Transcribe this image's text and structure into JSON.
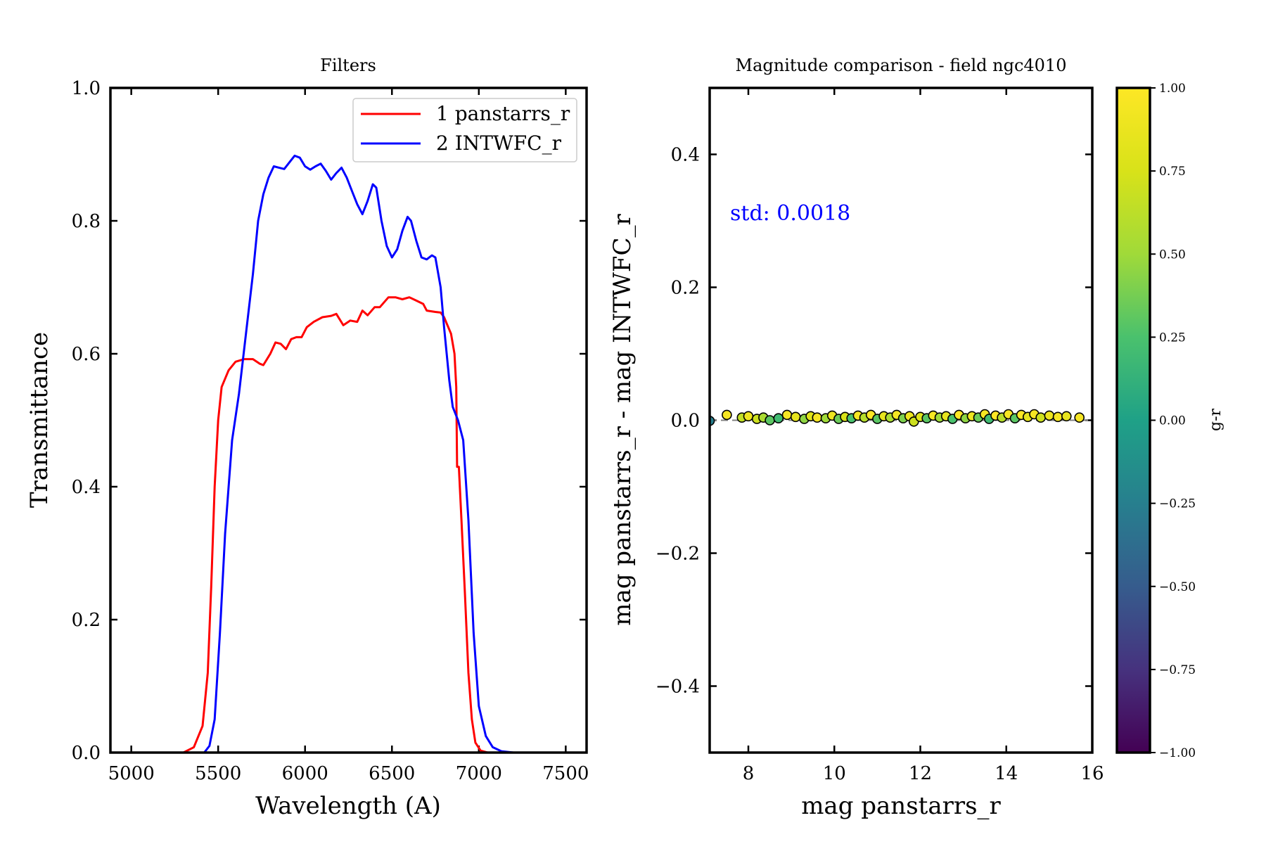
{
  "chart_data": [
    {
      "type": "line",
      "title": "Filters",
      "xlabel": "Wavelength (A)",
      "ylabel": "Transmittance",
      "xlim": [
        4880,
        7620
      ],
      "ylim": [
        0,
        1
      ],
      "xticks": [
        5000,
        5500,
        6000,
        6500,
        7000,
        7500
      ],
      "yticks": [
        0.0,
        0.2,
        0.4,
        0.6,
        0.8,
        1.0
      ],
      "xtick_labels": [
        "5000",
        "5500",
        "6000",
        "6500",
        "7000",
        "7500"
      ],
      "ytick_labels": [
        "0.0",
        "0.2",
        "0.4",
        "0.6",
        "0.8",
        "1.0"
      ],
      "legend": "top-right",
      "series": [
        {
          "name": "1 panstarrs_r",
          "color": "#ff0000",
          "points": [
            [
              5300,
              0
            ],
            [
              5360,
              0.008
            ],
            [
              5410,
              0.04
            ],
            [
              5440,
              0.12
            ],
            [
              5460,
              0.25
            ],
            [
              5480,
              0.4
            ],
            [
              5500,
              0.5
            ],
            [
              5520,
              0.55
            ],
            [
              5560,
              0.575
            ],
            [
              5600,
              0.588
            ],
            [
              5650,
              0.592
            ],
            [
              5700,
              0.592
            ],
            [
              5740,
              0.585
            ],
            [
              5760,
              0.583
            ],
            [
              5800,
              0.6
            ],
            [
              5830,
              0.617
            ],
            [
              5860,
              0.615
            ],
            [
              5890,
              0.607
            ],
            [
              5920,
              0.622
            ],
            [
              5950,
              0.625
            ],
            [
              5980,
              0.625
            ],
            [
              6010,
              0.64
            ],
            [
              6050,
              0.648
            ],
            [
              6100,
              0.655
            ],
            [
              6150,
              0.657
            ],
            [
              6180,
              0.66
            ],
            [
              6220,
              0.643
            ],
            [
              6260,
              0.65
            ],
            [
              6300,
              0.648
            ],
            [
              6330,
              0.665
            ],
            [
              6360,
              0.658
            ],
            [
              6400,
              0.67
            ],
            [
              6430,
              0.67
            ],
            [
              6480,
              0.685
            ],
            [
              6520,
              0.685
            ],
            [
              6560,
              0.682
            ],
            [
              6600,
              0.685
            ],
            [
              6640,
              0.68
            ],
            [
              6680,
              0.675
            ],
            [
              6700,
              0.665
            ],
            [
              6750,
              0.663
            ],
            [
              6780,
              0.662
            ],
            [
              6800,
              0.655
            ],
            [
              6840,
              0.63
            ],
            [
              6860,
              0.6
            ],
            [
              6870,
              0.55
            ],
            [
              6875,
              0.43
            ],
            [
              6885,
              0.43
            ],
            [
              6900,
              0.35
            ],
            [
              6920,
              0.24
            ],
            [
              6940,
              0.12
            ],
            [
              6960,
              0.05
            ],
            [
              6980,
              0.015
            ],
            [
              7010,
              0.003
            ],
            [
              7050,
              0
            ],
            [
              7600,
              0
            ]
          ]
        },
        {
          "name": "2 INTWFC_r",
          "color": "#0000ff",
          "points": [
            [
              5420,
              0
            ],
            [
              5450,
              0.01
            ],
            [
              5480,
              0.05
            ],
            [
              5510,
              0.18
            ],
            [
              5540,
              0.33
            ],
            [
              5580,
              0.47
            ],
            [
              5620,
              0.54
            ],
            [
              5660,
              0.63
            ],
            [
              5700,
              0.72
            ],
            [
              5730,
              0.8
            ],
            [
              5760,
              0.84
            ],
            [
              5790,
              0.865
            ],
            [
              5820,
              0.882
            ],
            [
              5850,
              0.88
            ],
            [
              5880,
              0.878
            ],
            [
              5910,
              0.888
            ],
            [
              5940,
              0.898
            ],
            [
              5970,
              0.895
            ],
            [
              6000,
              0.882
            ],
            [
              6030,
              0.877
            ],
            [
              6060,
              0.882
            ],
            [
              6090,
              0.886
            ],
            [
              6120,
              0.875
            ],
            [
              6150,
              0.862
            ],
            [
              6180,
              0.872
            ],
            [
              6210,
              0.88
            ],
            [
              6240,
              0.865
            ],
            [
              6270,
              0.845
            ],
            [
              6300,
              0.825
            ],
            [
              6330,
              0.81
            ],
            [
              6360,
              0.83
            ],
            [
              6390,
              0.855
            ],
            [
              6410,
              0.85
            ],
            [
              6440,
              0.8
            ],
            [
              6470,
              0.762
            ],
            [
              6500,
              0.745
            ],
            [
              6530,
              0.757
            ],
            [
              6560,
              0.785
            ],
            [
              6590,
              0.806
            ],
            [
              6610,
              0.8
            ],
            [
              6640,
              0.77
            ],
            [
              6670,
              0.745
            ],
            [
              6700,
              0.742
            ],
            [
              6730,
              0.748
            ],
            [
              6750,
              0.745
            ],
            [
              6780,
              0.7
            ],
            [
              6800,
              0.64
            ],
            [
              6830,
              0.56
            ],
            [
              6850,
              0.52
            ],
            [
              6880,
              0.5
            ],
            [
              6910,
              0.47
            ],
            [
              6940,
              0.35
            ],
            [
              6970,
              0.18
            ],
            [
              7000,
              0.07
            ],
            [
              7040,
              0.025
            ],
            [
              7080,
              0.008
            ],
            [
              7130,
              0.002
            ],
            [
              7200,
              0
            ],
            [
              7600,
              0
            ]
          ]
        }
      ]
    },
    {
      "type": "scatter",
      "title": "Magnitude comparison - field ngc4010",
      "xlabel": "mag panstarrs_r",
      "ylabel": "mag panstarrs_r - mag INTWFC_r",
      "xlim": [
        7.1,
        16.0
      ],
      "ylim": [
        -0.5,
        0.5
      ],
      "xticks": [
        8,
        10,
        12,
        14,
        16
      ],
      "yticks": [
        -0.4,
        -0.2,
        0.0,
        0.2,
        0.4
      ],
      "xtick_labels": [
        "8",
        "10",
        "12",
        "14",
        "16"
      ],
      "ytick_labels": [
        "−0.4",
        "−0.2",
        "0.0",
        "0.2",
        "0.4"
      ],
      "annotation": "std: 0.0018",
      "annotation_color": "#0000ff",
      "reference_line": 0.0,
      "colorbar": {
        "label": "g-r",
        "colormap": "viridis",
        "range": [
          -1.0,
          1.0
        ],
        "ticks": [
          -1.0,
          -0.75,
          -0.5,
          -0.25,
          0.0,
          0.25,
          0.5,
          0.75,
          1.0
        ],
        "tick_labels": [
          "−1.00",
          "−0.75",
          "−0.50",
          "−0.25",
          "0.00",
          "0.25",
          "0.50",
          "0.75",
          "1.00"
        ]
      },
      "points": [
        {
          "x": 7.1,
          "y": -0.001,
          "c": -0.25
        },
        {
          "x": 7.5,
          "y": 0.008,
          "c": 0.95
        },
        {
          "x": 7.85,
          "y": 0.004,
          "c": 0.65
        },
        {
          "x": 8.0,
          "y": 0.006,
          "c": 0.9
        },
        {
          "x": 8.2,
          "y": 0.002,
          "c": 0.7
        },
        {
          "x": 8.35,
          "y": 0.004,
          "c": 0.55
        },
        {
          "x": 8.5,
          "y": 0.0,
          "c": 0.3
        },
        {
          "x": 8.7,
          "y": 0.003,
          "c": 0.2
        },
        {
          "x": 8.9,
          "y": 0.008,
          "c": 0.95
        },
        {
          "x": 9.1,
          "y": 0.005,
          "c": 0.85
        },
        {
          "x": 9.3,
          "y": 0.002,
          "c": 0.45
        },
        {
          "x": 9.45,
          "y": 0.006,
          "c": 0.8
        },
        {
          "x": 9.6,
          "y": 0.004,
          "c": 0.95
        },
        {
          "x": 9.8,
          "y": 0.003,
          "c": 0.5
        },
        {
          "x": 9.95,
          "y": 0.007,
          "c": 0.9
        },
        {
          "x": 10.1,
          "y": 0.002,
          "c": 0.35
        },
        {
          "x": 10.25,
          "y": 0.005,
          "c": 0.75
        },
        {
          "x": 10.4,
          "y": 0.003,
          "c": 0.25
        },
        {
          "x": 10.55,
          "y": 0.007,
          "c": 0.95
        },
        {
          "x": 10.7,
          "y": 0.004,
          "c": 0.6
        },
        {
          "x": 10.85,
          "y": 0.008,
          "c": 1.0
        },
        {
          "x": 11.0,
          "y": 0.002,
          "c": 0.3
        },
        {
          "x": 11.15,
          "y": 0.006,
          "c": 0.85
        },
        {
          "x": 11.3,
          "y": 0.004,
          "c": 0.55
        },
        {
          "x": 11.45,
          "y": 0.008,
          "c": 0.95
        },
        {
          "x": 11.6,
          "y": 0.003,
          "c": 0.4
        },
        {
          "x": 11.75,
          "y": 0.006,
          "c": 0.9
        },
        {
          "x": 11.85,
          "y": -0.002,
          "c": 0.7
        },
        {
          "x": 12.0,
          "y": 0.005,
          "c": 0.8
        },
        {
          "x": 12.15,
          "y": 0.003,
          "c": 0.3
        },
        {
          "x": 12.3,
          "y": 0.007,
          "c": 0.95
        },
        {
          "x": 12.45,
          "y": 0.004,
          "c": 0.5
        },
        {
          "x": 12.6,
          "y": 0.006,
          "c": 0.85
        },
        {
          "x": 12.75,
          "y": 0.002,
          "c": 0.25
        },
        {
          "x": 12.9,
          "y": 0.008,
          "c": 1.0
        },
        {
          "x": 13.05,
          "y": 0.003,
          "c": 0.45
        },
        {
          "x": 13.2,
          "y": 0.006,
          "c": 0.9
        },
        {
          "x": 13.35,
          "y": 0.004,
          "c": 0.35
        },
        {
          "x": 13.5,
          "y": 0.009,
          "c": 0.95
        },
        {
          "x": 13.6,
          "y": 0.002,
          "c": 0.2
        },
        {
          "x": 13.75,
          "y": 0.007,
          "c": 1.0
        },
        {
          "x": 13.9,
          "y": 0.004,
          "c": 0.6
        },
        {
          "x": 14.05,
          "y": 0.009,
          "c": 0.95
        },
        {
          "x": 14.2,
          "y": 0.003,
          "c": 0.3
        },
        {
          "x": 14.35,
          "y": 0.008,
          "c": 1.0
        },
        {
          "x": 14.5,
          "y": 0.005,
          "c": 0.85
        },
        {
          "x": 14.65,
          "y": 0.009,
          "c": 0.95
        },
        {
          "x": 14.8,
          "y": 0.004,
          "c": 0.7
        },
        {
          "x": 15.0,
          "y": 0.007,
          "c": 0.9
        },
        {
          "x": 15.2,
          "y": 0.005,
          "c": 0.95
        },
        {
          "x": 15.4,
          "y": 0.006,
          "c": 0.85
        },
        {
          "x": 15.7,
          "y": 0.004,
          "c": 0.95
        }
      ]
    }
  ]
}
